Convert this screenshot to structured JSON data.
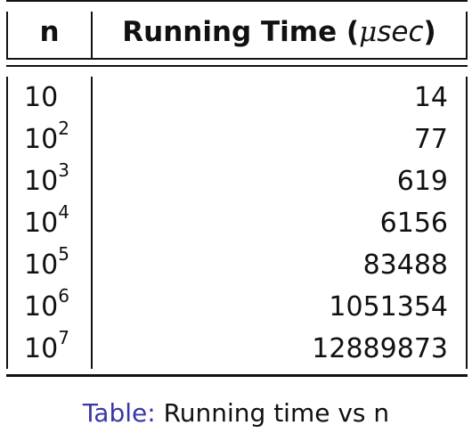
{
  "table": {
    "header": {
      "col_n": "n",
      "col_time_prefix": "Running Time (",
      "col_time_mu": "μ",
      "col_time_unit": "sec",
      "col_time_suffix": ")"
    },
    "rows": [
      {
        "base": "10",
        "exp": "",
        "time": "14"
      },
      {
        "base": "10",
        "exp": "2",
        "time": "77"
      },
      {
        "base": "10",
        "exp": "3",
        "time": "619"
      },
      {
        "base": "10",
        "exp": "4",
        "time": "6156"
      },
      {
        "base": "10",
        "exp": "5",
        "time": "83488"
      },
      {
        "base": "10",
        "exp": "6",
        "time": "1051354"
      },
      {
        "base": "10",
        "exp": "7",
        "time": "12889873"
      }
    ]
  },
  "caption": {
    "label": "Table:",
    "text": "Running time vs n"
  },
  "colors": {
    "caption_label": "#3a37a6",
    "text": "#111111"
  }
}
